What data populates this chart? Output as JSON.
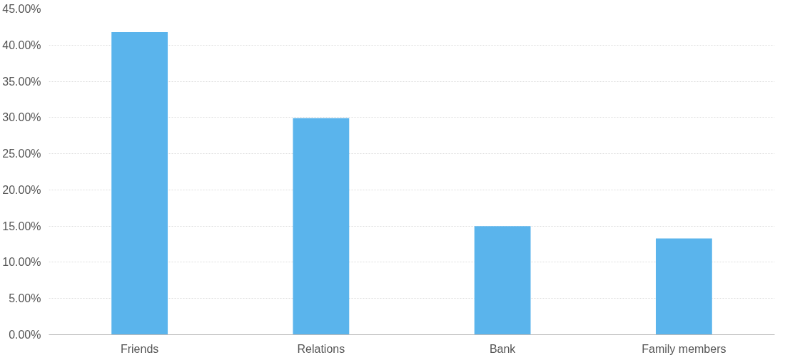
{
  "chart_data": {
    "type": "bar",
    "categories": [
      "Friends",
      "Relations",
      "Bank",
      "Family members"
    ],
    "values": [
      41.8,
      29.9,
      15.0,
      13.3
    ],
    "color": "#5ab4ec",
    "ylim": [
      0,
      45
    ],
    "yticks": [
      {
        "value": 0,
        "label": "0.00%"
      },
      {
        "value": 5,
        "label": "5.00%"
      },
      {
        "value": 10,
        "label": "10.00%"
      },
      {
        "value": 15,
        "label": "15.00%"
      },
      {
        "value": 20,
        "label": "20.00%"
      },
      {
        "value": 25,
        "label": "25.00%"
      },
      {
        "value": 30,
        "label": "30.00%"
      },
      {
        "value": 35,
        "label": "35.00%"
      },
      {
        "value": 40,
        "label": "40.00%"
      },
      {
        "value": 45,
        "label": "45.00%"
      }
    ],
    "grid": "y"
  }
}
